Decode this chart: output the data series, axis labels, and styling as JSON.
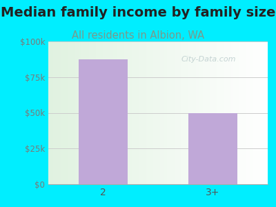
{
  "title": "Median family income by family size",
  "subtitle": "All residents in Albion, WA",
  "categories": [
    "2",
    "3+"
  ],
  "values": [
    87500,
    50000
  ],
  "bar_color": "#c0a8d8",
  "figure_bg": "#00eeff",
  "ylim": [
    0,
    100000
  ],
  "yticks": [
    0,
    25000,
    50000,
    75000,
    100000
  ],
  "ytick_labels": [
    "$0",
    "$25k",
    "$50k",
    "$75k",
    "$100k"
  ],
  "title_fontsize": 14,
  "title_color": "#222222",
  "subtitle_fontsize": 10.5,
  "subtitle_color": "#7a9a8a",
  "ytick_color": "#7a7a7a",
  "xtick_color": "#555555",
  "watermark": "City-Data.com",
  "watermark_color": "#bbcccc",
  "grid_color": "#cccccc"
}
